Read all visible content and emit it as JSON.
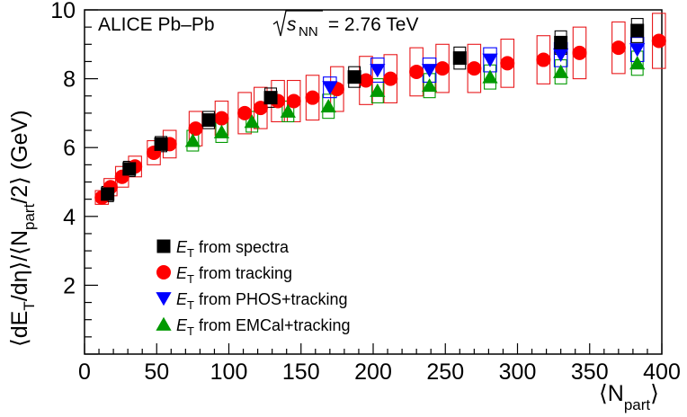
{
  "chart_data": {
    "type": "scatter",
    "title": "ALICE Pb–Pb",
    "energy_prefix": "s",
    "energy_sub": "NN",
    "energy_value": " = 2.76 TeV",
    "xlabel": {
      "pre": "⟨N",
      "sub": "part",
      "post": "⟩"
    },
    "ylabel": {
      "p1": "⟨dE",
      "s1": "T",
      "p2": "/dη⟩/⟨N",
      "s2": "part",
      "p3": "/2⟩ (GeV)"
    },
    "xlim": [
      0,
      400
    ],
    "ylim": [
      0,
      10
    ],
    "xticks": [
      "0",
      "50",
      "100",
      "150",
      "200",
      "250",
      "300",
      "350",
      "400"
    ],
    "yticks": [
      "2",
      "4",
      "6",
      "8",
      "10"
    ],
    "grid": false,
    "legend_position": "lower-left",
    "series": [
      {
        "name": "from spectra",
        "legend_main": "E",
        "legend_sub": "T",
        "legend_rest": " from spectra",
        "marker": "square",
        "color": "#000000",
        "box_color": "#000000",
        "box_hw": 4,
        "x": [
          16,
          31,
          53,
          86,
          129,
          187,
          260,
          330,
          383
        ],
        "y": [
          4.65,
          5.38,
          6.1,
          6.8,
          7.45,
          8.05,
          8.6,
          9.05,
          9.4
        ],
        "sys": [
          0.22,
          0.22,
          0.22,
          0.25,
          0.28,
          0.3,
          0.32,
          0.34,
          0.35
        ]
      },
      {
        "name": "from tracking",
        "legend_main": "E",
        "legend_sub": "T",
        "legend_rest": " from tracking",
        "marker": "circle",
        "color": "#ff0000",
        "box_color": "#e8191c",
        "box_hw": 4.5,
        "x": [
          12,
          18,
          26,
          35,
          48,
          59,
          77,
          95,
          111,
          122,
          134,
          145,
          158,
          175,
          195,
          212,
          230,
          248,
          270,
          293,
          318,
          343,
          370,
          398
        ],
        "y": [
          4.55,
          4.85,
          5.15,
          5.45,
          5.85,
          6.1,
          6.55,
          6.85,
          7.0,
          7.15,
          7.35,
          7.35,
          7.45,
          7.7,
          7.95,
          8.0,
          8.2,
          8.3,
          8.3,
          8.45,
          8.55,
          8.75,
          8.9,
          9.1
        ],
        "sys": [
          0.2,
          0.25,
          0.3,
          0.3,
          0.35,
          0.4,
          0.5,
          0.5,
          0.6,
          0.6,
          0.6,
          0.6,
          0.65,
          0.65,
          0.7,
          0.7,
          0.7,
          0.7,
          0.7,
          0.7,
          0.7,
          0.75,
          0.75,
          0.8
        ]
      },
      {
        "name": "from PHOS+tracking",
        "legend_main": "E",
        "legend_sub": "T",
        "legend_rest": " from PHOS+tracking",
        "marker": "triangle-down",
        "color": "#0000ff",
        "box_color": "#0000ff",
        "box_hw": 4.5,
        "x": [
          170,
          203,
          239,
          281,
          330,
          383
        ],
        "y": [
          7.75,
          8.25,
          8.25,
          8.55,
          8.7,
          8.85
        ],
        "sys": [
          0.3,
          0.35,
          0.35,
          0.35,
          0.35,
          0.35
        ]
      },
      {
        "name": "from EMCal+tracking",
        "legend_main": "E",
        "legend_sub": "T",
        "legend_rest": " from EMCal+tracking",
        "marker": "triangle-up",
        "color": "#009900",
        "box_color": "#009900",
        "box_hw": 4,
        "x": [
          75,
          95,
          116,
          141,
          169,
          203,
          239,
          281,
          330,
          383
        ],
        "y": [
          6.2,
          6.45,
          6.75,
          7.05,
          7.2,
          7.65,
          7.8,
          8.05,
          8.2,
          8.45
        ],
        "sys": [
          0.3,
          0.3,
          0.3,
          0.3,
          0.35,
          0.35,
          0.35,
          0.35,
          0.35,
          0.35
        ]
      }
    ]
  }
}
